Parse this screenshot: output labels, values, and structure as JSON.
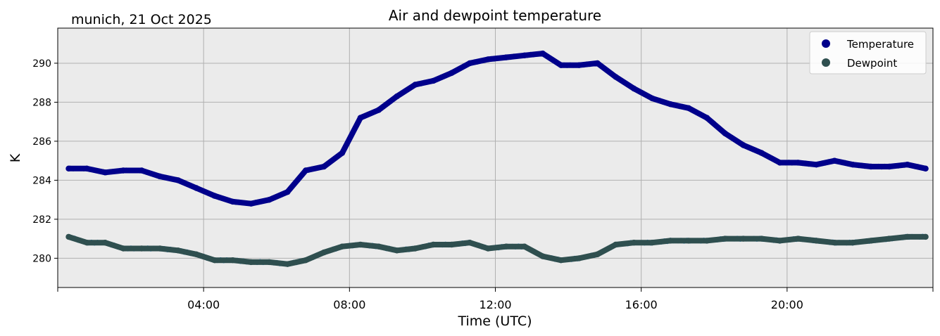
{
  "chart_data": {
    "type": "line",
    "title": "Air and dewpoint temperature",
    "subtitle": "munich, 21 Oct 2025",
    "xlabel": "Time (UTC)",
    "ylabel": "K",
    "xlim": [
      0,
      24
    ],
    "ylim": [
      278.5,
      291.8
    ],
    "x_ticks": [
      {
        "value": 4,
        "label": "04:00"
      },
      {
        "value": 8,
        "label": "08:00"
      },
      {
        "value": 12,
        "label": "12:00"
      },
      {
        "value": 16,
        "label": "16:00"
      },
      {
        "value": 20,
        "label": "20:00"
      }
    ],
    "y_ticks": [
      {
        "value": 280,
        "label": "280"
      },
      {
        "value": 282,
        "label": "282"
      },
      {
        "value": 284,
        "label": "284"
      },
      {
        "value": 286,
        "label": "286"
      },
      {
        "value": 288,
        "label": "288"
      },
      {
        "value": 290,
        "label": "290"
      }
    ],
    "grid": true,
    "legend_position": "top-right",
    "series": [
      {
        "name": "Temperature",
        "color": "#00008b",
        "raw_color": "#7fa9a9",
        "x": [
          0.3,
          0.8,
          1.3,
          1.8,
          2.3,
          2.8,
          3.3,
          3.8,
          4.3,
          4.8,
          5.3,
          5.8,
          6.3,
          6.8,
          7.3,
          7.8,
          8.3,
          8.8,
          9.3,
          9.8,
          10.3,
          10.8,
          11.3,
          11.8,
          12.3,
          12.8,
          13.3,
          13.8,
          14.3,
          14.8,
          15.3,
          15.8,
          16.3,
          16.8,
          17.3,
          17.8,
          18.3,
          18.8,
          19.3,
          19.8,
          20.3,
          20.8,
          21.3,
          21.8,
          22.3,
          22.8,
          23.3,
          23.8
        ],
        "values": [
          284.6,
          284.6,
          284.4,
          284.5,
          284.5,
          284.2,
          284.0,
          283.6,
          283.2,
          282.9,
          282.8,
          283.0,
          283.4,
          284.5,
          284.7,
          285.4,
          287.2,
          287.6,
          288.3,
          288.9,
          289.1,
          289.5,
          290.0,
          290.2,
          290.3,
          290.4,
          290.5,
          289.9,
          289.9,
          290.0,
          289.3,
          288.7,
          288.2,
          287.9,
          287.7,
          287.2,
          286.4,
          285.8,
          285.4,
          284.9,
          284.9,
          284.8,
          285.0,
          284.8,
          284.7,
          284.7,
          284.8,
          284.6
        ]
      },
      {
        "name": "Dewpoint",
        "color": "#2f4f4f",
        "raw_color": "#2e9bef",
        "x": [
          0.3,
          0.8,
          1.3,
          1.8,
          2.3,
          2.8,
          3.3,
          3.8,
          4.3,
          4.8,
          5.3,
          5.8,
          6.3,
          6.8,
          7.3,
          7.8,
          8.3,
          8.8,
          9.3,
          9.8,
          10.3,
          10.8,
          11.3,
          11.8,
          12.3,
          12.8,
          13.3,
          13.8,
          14.3,
          14.8,
          15.3,
          15.8,
          16.3,
          16.8,
          17.3,
          17.8,
          18.3,
          18.8,
          19.3,
          19.8,
          20.3,
          20.8,
          21.3,
          21.8,
          22.3,
          22.8,
          23.3,
          23.8
        ],
        "values": [
          281.1,
          280.8,
          280.8,
          280.5,
          280.5,
          280.5,
          280.4,
          280.2,
          279.9,
          279.9,
          279.8,
          279.8,
          279.7,
          279.9,
          280.3,
          280.6,
          280.7,
          280.6,
          280.4,
          280.5,
          280.7,
          280.7,
          280.8,
          280.5,
          280.6,
          280.6,
          280.1,
          279.9,
          280.0,
          280.2,
          280.7,
          280.8,
          280.8,
          280.9,
          280.9,
          280.9,
          281.0,
          281.0,
          281.0,
          280.9,
          281.0,
          280.9,
          280.8,
          280.8,
          280.9,
          281.0,
          281.1,
          281.1
        ]
      }
    ]
  }
}
